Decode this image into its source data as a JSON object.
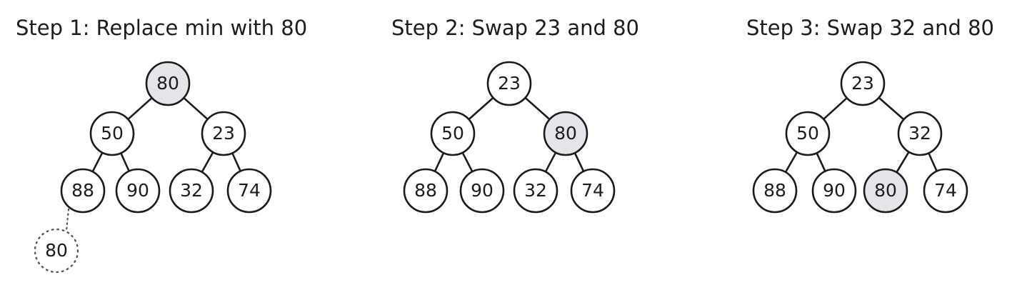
{
  "colors": {
    "stroke": "#1a1a1a",
    "node_fill": "#ffffff",
    "highlight_fill": "#e4e4ea",
    "ghost_stroke": "#555555"
  },
  "panels": [
    {
      "title": "Step 1: Replace min with 80",
      "nodes": [
        "80",
        "50",
        "23",
        "88",
        "90",
        "32",
        "74"
      ],
      "highlight": [
        0
      ],
      "extra_node": "80"
    },
    {
      "title": "Step 2: Swap 23 and 80",
      "nodes": [
        "23",
        "50",
        "80",
        "88",
        "90",
        "32",
        "74"
      ],
      "highlight": [
        2
      ]
    },
    {
      "title": "Step 3: Swap 32 and 80",
      "nodes": [
        "23",
        "50",
        "32",
        "88",
        "90",
        "80",
        "74"
      ],
      "highlight": [
        5
      ]
    }
  ]
}
